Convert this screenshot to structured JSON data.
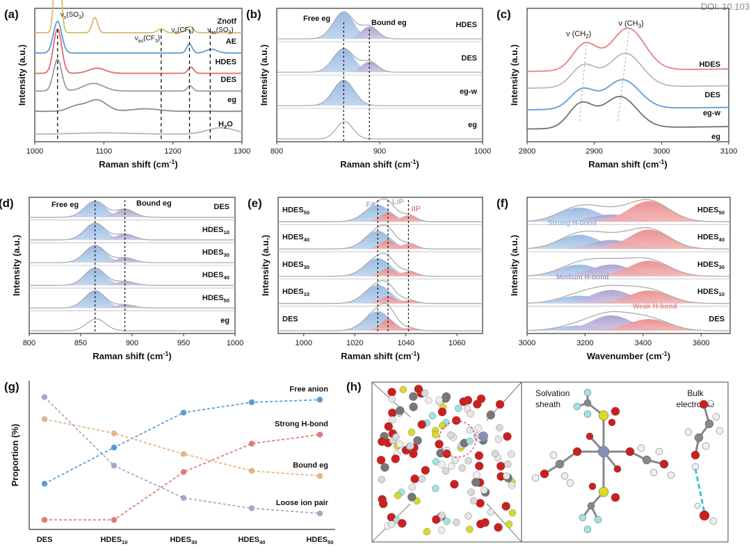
{
  "doi": "DOI: 10.103",
  "axes_common": {
    "ylabel": "Intensity (a.u.)",
    "xlabel_prefix": "Raman shift (cm",
    "xlabel_suffix": ")",
    "exp": "-1"
  },
  "chart_data": [
    {
      "id": "a",
      "letter": "(a)",
      "type": "line",
      "xlim": [
        1000,
        1300
      ],
      "xticks": [
        1000,
        1100,
        1200,
        1300
      ],
      "xlabel": "Raman shift (cm-1)",
      "ylabel": "Intensity (a.u.)",
      "series": [
        {
          "name": "Znotf",
          "color": "#d9b76f",
          "baseline": 0.86
        },
        {
          "name": "AE",
          "color": "#5b9bd5",
          "baseline": 0.7
        },
        {
          "name": "HDES",
          "color": "#e06b6b",
          "baseline": 0.54
        },
        {
          "name": "DES",
          "color": "#9a9a9a",
          "baseline": 0.4
        },
        {
          "name": "eg",
          "color": "#8a8a8a",
          "baseline": 0.24
        },
        {
          "name": "H2O",
          "color": "#b5b5b5",
          "baseline": 0.06
        }
      ],
      "vlines": [
        1033,
        1183,
        1224,
        1254
      ],
      "annotations": [
        {
          "label": "vs(SO3)",
          "x": 1033
        },
        {
          "label": "vas(CF3)",
          "x": 1183
        },
        {
          "label": "vs(CF3)",
          "x": 1224
        },
        {
          "label": "vas(SO3)",
          "x": 1254
        }
      ]
    },
    {
      "id": "b",
      "letter": "(b)",
      "type": "area",
      "xlim": [
        800,
        1000
      ],
      "xticks": [
        800,
        900,
        1000
      ],
      "xlabel": "Raman shift (cm-1)",
      "ylabel": "Intensity (a.u.)",
      "series": [
        {
          "name": "HDES",
          "free": 0.85,
          "bound": 0.65
        },
        {
          "name": "DES",
          "free": 0.75,
          "bound": 0.55
        },
        {
          "name": "eg-w",
          "free": 0.8,
          "bound": 0.0
        },
        {
          "name": "eg",
          "free": 0.0,
          "bound": 0.0
        }
      ],
      "peaks": {
        "free": 865,
        "bound": 890
      },
      "labels": {
        "free": "Free eg",
        "bound": "Bound eg"
      }
    },
    {
      "id": "c",
      "letter": "(c)",
      "type": "line",
      "xlim": [
        2800,
        3100
      ],
      "xticks": [
        2800,
        2900,
        3000,
        3100
      ],
      "xlabel": "Raman shift (cm-1)",
      "ylabel": "Intensity (a.u.)",
      "series": [
        {
          "name": "HDES",
          "color": "#e08080"
        },
        {
          "name": "DES",
          "color": "#b9b9b9"
        },
        {
          "name": "eg-w",
          "color": "#5b9bd5"
        },
        {
          "name": "eg",
          "color": "#6f6f6f"
        }
      ],
      "annotations": [
        {
          "label": "v(CH2)",
          "x": 2888
        },
        {
          "label": "v(CH3)",
          "x": 2950
        }
      ]
    },
    {
      "id": "d",
      "letter": "(d)",
      "type": "area",
      "xlim": [
        800,
        1000
      ],
      "xticks": [
        800,
        850,
        900,
        950,
        1000
      ],
      "xlabel": "Raman shift (cm-1)",
      "ylabel": "Intensity (a.u.)",
      "series": [
        {
          "name": "DES",
          "sub": "",
          "free": 0.75,
          "bound": 0.62
        },
        {
          "name": "HDES",
          "sub": "10",
          "free": 0.78,
          "bound": 0.45
        },
        {
          "name": "HDES",
          "sub": "30",
          "free": 0.8,
          "bound": 0.38
        },
        {
          "name": "HDES",
          "sub": "40",
          "free": 0.8,
          "bound": 0.3
        },
        {
          "name": "HDES",
          "sub": "50",
          "free": 0.8,
          "bound": 0.25
        },
        {
          "name": "eg",
          "sub": "",
          "free": 0.0,
          "bound": 0.0
        }
      ],
      "peaks": {
        "free": 864,
        "bound": 893
      },
      "labels": {
        "free": "Free eg",
        "bound": "Bound eg"
      }
    },
    {
      "id": "e",
      "letter": "(e)",
      "type": "area",
      "xlim": [
        990,
        1070
      ],
      "xticks": [
        1000,
        1020,
        1040,
        1060
      ],
      "xlabel": "Raman shift (cm-1)",
      "ylabel": "Intensity (a.u.)",
      "series": [
        {
          "name": "HDES",
          "sub": "50",
          "fa": 0.65,
          "lip": 0.35,
          "iip": 0.25
        },
        {
          "name": "HDES",
          "sub": "40",
          "fa": 0.7,
          "lip": 0.35,
          "iip": 0.2
        },
        {
          "name": "HDES",
          "sub": "30",
          "fa": 0.7,
          "lip": 0.3,
          "iip": 0.18
        },
        {
          "name": "HDES",
          "sub": "10",
          "fa": 0.72,
          "lip": 0.28,
          "iip": 0.12
        },
        {
          "name": "DES",
          "sub": "",
          "fa": 0.75,
          "lip": 0.45,
          "iip": 0.1
        }
      ],
      "peaks": {
        "fa": 1029,
        "lip": 1033,
        "iip": 1041
      },
      "labels": {
        "fa": "FA",
        "lip": "LIP",
        "iip": "IIP"
      }
    },
    {
      "id": "f",
      "letter": "(f)",
      "type": "area",
      "xlim": [
        3000,
        3700
      ],
      "xticks": [
        3000,
        3200,
        3400,
        3600
      ],
      "xlabel": "Wavenumber (cm-1)",
      "ylabel": "Intensity (a.u.)",
      "series": [
        {
          "name": "HDES",
          "sub": "50",
          "strong": 0.55,
          "medium": 0.4,
          "weak": 0.8
        },
        {
          "name": "HDES",
          "sub": "40",
          "strong": 0.55,
          "medium": 0.5,
          "weak": 0.75
        },
        {
          "name": "HDES",
          "sub": "30",
          "strong": 0.45,
          "medium": 0.65,
          "weak": 0.6
        },
        {
          "name": "HDES",
          "sub": "10",
          "strong": 0.3,
          "medium": 0.75,
          "weak": 0.5
        },
        {
          "name": "DES",
          "sub": "",
          "strong": 0.2,
          "medium": 0.85,
          "weak": 0.45
        }
      ],
      "labels": {
        "strong": "Strong H-bond",
        "medium": "Medium H-bond",
        "weak": "Weak H-bond"
      }
    },
    {
      "id": "g",
      "letter": "(g)",
      "type": "line",
      "categories": [
        "DES",
        "HDES10",
        "HDES30",
        "HDES40",
        "HDES50"
      ],
      "category_labels": [
        {
          "base": "DES",
          "sub": ""
        },
        {
          "base": "HDES",
          "sub": "10"
        },
        {
          "base": "HDES",
          "sub": "30"
        },
        {
          "base": "HDES",
          "sub": "40"
        },
        {
          "base": "HDES",
          "sub": "50"
        }
      ],
      "ylabel": "Proportion (%)",
      "ylim": [
        0,
        100
      ],
      "series": [
        {
          "name": "Free anion",
          "color": "#5b9bd5",
          "values": [
            30,
            58,
            85,
            93,
            95
          ]
        },
        {
          "name": "Strong H-bond",
          "color": "#e07a7a",
          "values": [
            2,
            2,
            39,
            61,
            68
          ]
        },
        {
          "name": "Bound eg",
          "color": "#e3b487",
          "values": [
            80,
            69,
            53,
            40,
            36
          ]
        },
        {
          "name": "Loose ion pair",
          "color": "#a9a4c8",
          "values": [
            97,
            44,
            19,
            11,
            7
          ]
        }
      ]
    }
  ],
  "panel_h": {
    "letter": "(h)",
    "labels": {
      "sheath": "Solvation\nsheath",
      "bulk": "Bulk\nelectrolyte"
    }
  }
}
